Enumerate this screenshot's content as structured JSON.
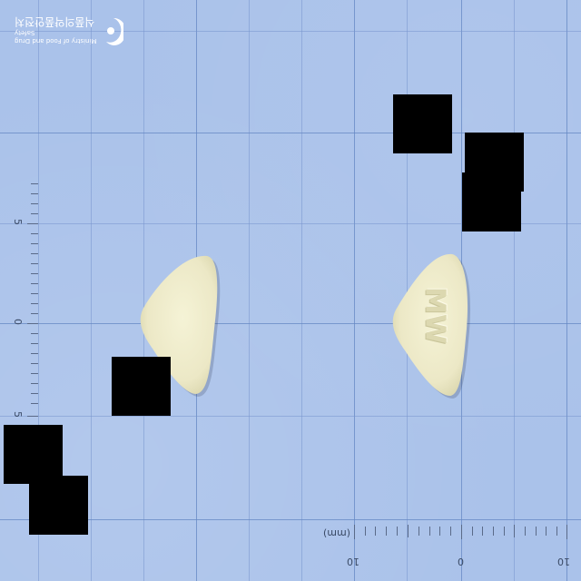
{
  "logo": {
    "korean_text": "식품의약품안전처",
    "english_text": "Ministry of Food and Drug Safety",
    "icon": "taegeuk-emblem-icon"
  },
  "ruler_left": {
    "labels": [
      "5",
      "0",
      "5"
    ]
  },
  "ruler_bottom": {
    "labels": [
      "10",
      "0",
      "10"
    ],
    "unit": "(mm)"
  },
  "pills": [
    {
      "side": "back",
      "imprint": "",
      "color": "#ece8c6",
      "shape": "rounded-triangle"
    },
    {
      "side": "front",
      "imprint": "MW",
      "color": "#ece8c6",
      "shape": "rounded-triangle"
    }
  ],
  "redactions_count": 7,
  "colors": {
    "background": "#aac2ea",
    "grid": "#7896cd",
    "pill": "#ece8c6"
  }
}
